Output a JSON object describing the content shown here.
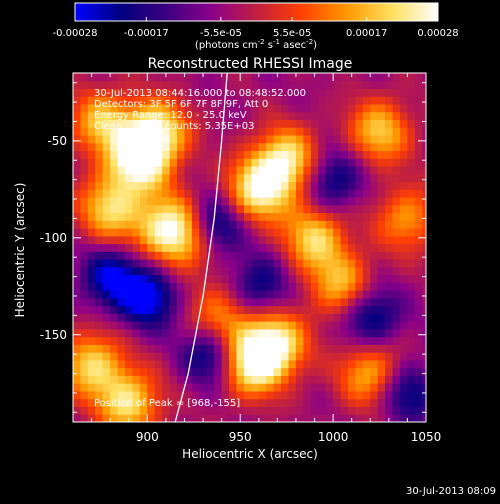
{
  "chart_data": {
    "type": "heatmap",
    "title": "Reconstructed RHESSI Image",
    "xlabel": "Heliocentric X (arcsec)",
    "ylabel": "Heliocentric Y (arcsec)",
    "xlim": [
      860,
      1050
    ],
    "ylim": [
      -195,
      -15
    ],
    "x_ticks": [
      900,
      950,
      1000,
      1050
    ],
    "y_ticks": [
      -50,
      -100,
      -150
    ],
    "colorbar": {
      "ticks": [
        "-0.00028",
        "-0.00017",
        "-5.5e-05",
        "5.5e-05",
        "0.00017",
        "0.00028"
      ],
      "values": [
        -0.00028,
        -0.00017,
        -5.5e-05,
        5.5e-05,
        0.00017,
        0.00028
      ],
      "range": [
        -0.00028,
        0.00028
      ],
      "unit_label": "(photons cm^-2 s^-1 asec^-2)",
      "colormap": [
        "#0000ff",
        "#000080",
        "#3a0080",
        "#8a008a",
        "#c02040",
        "#ff4000",
        "#ff9a00",
        "#ffe060",
        "#ffffff"
      ]
    },
    "annotations": [
      "30-Jul-2013 08:44:16.000 to 08:48:52.000",
      "Detectors: 3F 5F 6F 7F 8F 9F, Att 0",
      "Energy Range: 12.0 - 25.0 keV",
      "Clean     Total counts: 5.35E+03"
    ],
    "peak_text": "Position of Peak = [968,-155]",
    "peak": [
      968,
      -155
    ],
    "limb_curve": [
      [
        943,
        -15
      ],
      [
        940,
        -50
      ],
      [
        936,
        -90
      ],
      [
        930,
        -130
      ],
      [
        922,
        -170
      ],
      [
        915,
        -195
      ]
    ],
    "hotspots": [
      [
        895,
        -60,
        1.0
      ],
      [
        905,
        -45,
        0.9
      ],
      [
        880,
        -85,
        0.8
      ],
      [
        910,
        -95,
        0.85
      ],
      [
        925,
        -100,
        0.7
      ],
      [
        960,
        -75,
        0.95
      ],
      [
        975,
        -60,
        0.9
      ],
      [
        990,
        -100,
        0.8
      ],
      [
        1005,
        -125,
        0.7
      ],
      [
        1025,
        -45,
        0.75
      ],
      [
        968,
        -155,
        1.0
      ],
      [
        955,
        -165,
        0.9
      ],
      [
        1020,
        -170,
        0.7
      ],
      [
        890,
        -185,
        0.85
      ],
      [
        870,
        -165,
        0.8
      ],
      [
        1040,
        -90,
        0.6
      ],
      [
        940,
        -140,
        0.6
      ],
      [
        875,
        -40,
        0.7
      ]
    ],
    "coldspots": [
      [
        935,
        -95,
        0.9
      ],
      [
        900,
        -130,
        0.85
      ],
      [
        1020,
        -140,
        0.7
      ],
      [
        1000,
        -70,
        0.6
      ],
      [
        880,
        -120,
        0.7
      ],
      [
        960,
        -125,
        0.6
      ],
      [
        1040,
        -180,
        0.6
      ],
      [
        935,
        -160,
        0.7
      ]
    ]
  },
  "footer": {
    "timestamp": "30-Jul-2013 08:09"
  }
}
